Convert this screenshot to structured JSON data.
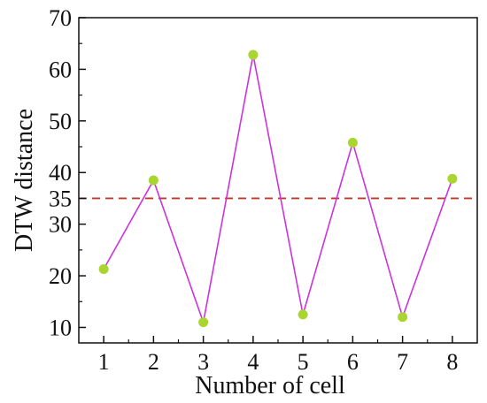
{
  "chart_data": {
    "type": "line",
    "title": "",
    "xlabel": "Number of cell",
    "ylabel": "DTW distance",
    "x": [
      1,
      2,
      3,
      4,
      5,
      6,
      7,
      8
    ],
    "xlim": [
      0.5,
      8.5
    ],
    "ylim": [
      7,
      70
    ],
    "xticks": [
      "1",
      "2",
      "3",
      "4",
      "5",
      "6",
      "7",
      "8"
    ],
    "yticks": [
      10,
      20,
      30,
      35,
      40,
      50,
      60,
      70
    ],
    "series": [
      {
        "values": [
          21.3,
          38.5,
          11.0,
          62.8,
          12.5,
          45.8,
          12.0,
          38.8
        ],
        "line_color": "#cc33dd",
        "marker_color": "#a8d62e",
        "marker": "circle"
      }
    ],
    "reference_lines": [
      {
        "orientation": "horizontal",
        "value": 35,
        "color": "#c0392b",
        "style": "dashed"
      }
    ],
    "grid": false,
    "legend": "none"
  }
}
